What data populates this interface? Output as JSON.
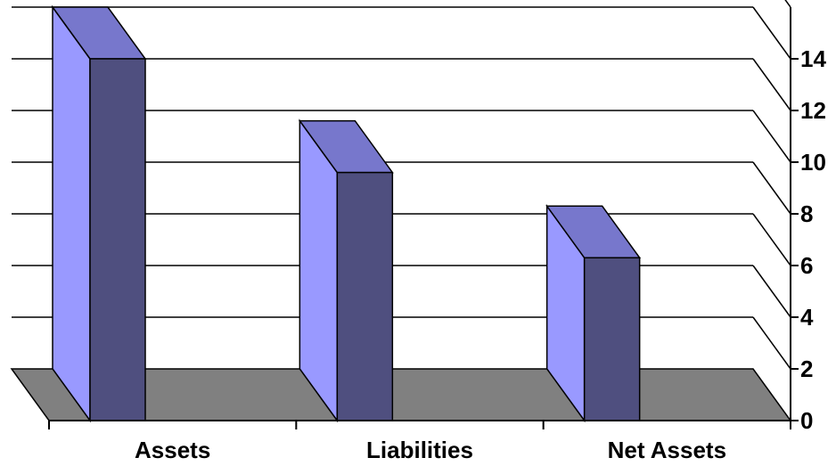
{
  "chart_data": {
    "type": "bar",
    "style": "3d-column",
    "categories": [
      "Assets",
      "Liabilities",
      "Net Assets"
    ],
    "values": [
      14,
      9.6,
      6.3
    ],
    "yticks": [
      "0",
      "2",
      "4",
      "6",
      "8",
      "10",
      "12",
      "14"
    ],
    "ylim": [
      0,
      16
    ],
    "axis_side": "right",
    "grid": true,
    "legend": "none",
    "colors": {
      "bar_front": "#4F4F7F",
      "bar_side": "#9999FF",
      "bar_top": "#7777CC",
      "floor": "#808080",
      "grid": "#000000"
    }
  }
}
